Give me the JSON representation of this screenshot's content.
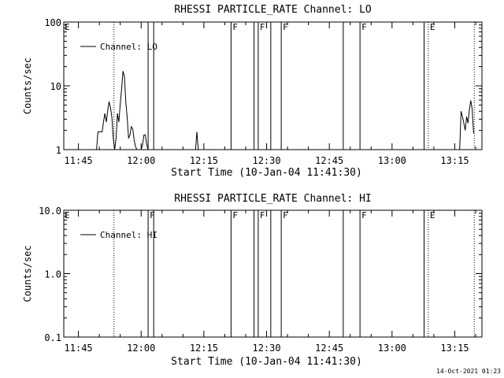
{
  "chart_data": [
    {
      "type": "line",
      "title": "RHESSI PARTICLE_RATE Channel: LO",
      "xlabel": "Start Time (10-Jan-04 11:41:30)",
      "ylabel": "Counts/sec",
      "yscale": "log",
      "ylim": [
        1,
        100
      ],
      "xlim": [
        "11:41:30",
        "13:21:30"
      ],
      "ytick_labels": [
        "1",
        "10",
        "100"
      ],
      "ytick_values": [
        1,
        10,
        100
      ],
      "xtick_labels": [
        "11:45",
        "12:00",
        "12:15",
        "12:30",
        "12:45",
        "13:00",
        "13:15"
      ],
      "legend": {
        "position": "top-left"
      },
      "series": [
        {
          "name": "Channel: LO",
          "x": [
            "11:49:20",
            "11:49:40",
            "11:50:00",
            "11:50:20",
            "11:50:40",
            "11:51:00",
            "11:51:20",
            "11:51:40",
            "11:52:00",
            "11:52:20",
            "11:52:40",
            "11:53:00",
            "11:53:20",
            "11:53:40",
            "11:54:00",
            "11:54:20",
            "11:54:40",
            "11:55:00",
            "11:55:20",
            "11:55:40",
            "11:56:00",
            "11:56:20",
            "11:56:40",
            "11:57:00",
            "11:57:20",
            "11:57:40",
            "11:58:00",
            "11:58:20",
            "11:58:40",
            "11:59:00",
            "11:59:20",
            "11:59:40",
            "12:00:00",
            "12:00:20",
            "12:00:40",
            "12:01:00",
            "12:01:20",
            "12:01:40",
            "12:02:00"
          ],
          "y": [
            1,
            1.9,
            1.9,
            1.9,
            1.9,
            2.7,
            3.7,
            2.7,
            4.1,
            5.7,
            4.5,
            3.2,
            1.5,
            1,
            1.5,
            3.7,
            2.7,
            5.2,
            9.2,
            17,
            14,
            5.5,
            3.2,
            1.5,
            1.7,
            2.3,
            2.1,
            1.4,
            1.1,
            1,
            1,
            1,
            1,
            1.2,
            1.7,
            1.7,
            1.2,
            1,
            1
          ]
        },
        {
          "name": "Channel: LO",
          "x": [
            "12:13:00",
            "12:13:20",
            "12:13:40"
          ],
          "y": [
            1,
            1.9,
            1
          ]
        },
        {
          "name": "Channel: LO",
          "x": [
            "13:16:10",
            "13:16:30",
            "13:16:50",
            "13:17:10",
            "13:17:30",
            "13:17:50",
            "13:18:10",
            "13:18:30",
            "13:18:50",
            "13:19:10",
            "13:19:30"
          ],
          "y": [
            1,
            4,
            3.3,
            2.6,
            2,
            3.3,
            2.6,
            4.3,
            5.9,
            4.3,
            1.8
          ]
        }
      ],
      "event_lines": [
        {
          "time": "11:53:30",
          "style": "dotted",
          "label": ""
        },
        {
          "time": "12:01:40",
          "style": "solid",
          "label": ""
        },
        {
          "time": "12:03:00",
          "style": "solid",
          "label": ""
        },
        {
          "time": "12:21:30",
          "style": "solid",
          "label": "F"
        },
        {
          "time": "12:27:00",
          "style": "solid",
          "label": ""
        },
        {
          "time": "12:28:00",
          "style": "solid",
          "label": "F"
        },
        {
          "time": "12:31:00",
          "style": "solid",
          "label": ""
        },
        {
          "time": "12:33:30",
          "style": "solid",
          "label": "F"
        },
        {
          "time": "12:48:20",
          "style": "solid",
          "label": ""
        },
        {
          "time": "12:52:20",
          "style": "solid",
          "label": "F"
        },
        {
          "time": "13:07:40",
          "style": "solid",
          "label": ""
        },
        {
          "time": "13:08:40",
          "style": "dotted",
          "label": "E"
        },
        {
          "time": "13:19:40",
          "style": "dotted",
          "label": ""
        }
      ],
      "corner_label": "E"
    },
    {
      "type": "line",
      "title": "RHESSI PARTICLE_RATE Channel: HI",
      "xlabel": "Start Time (10-Jan-04 11:41:30)",
      "ylabel": "Counts/sec",
      "yscale": "log",
      "ylim": [
        0.1,
        10
      ],
      "xlim": [
        "11:41:30",
        "13:21:30"
      ],
      "ytick_labels": [
        "0.1",
        "1.0",
        "10.0"
      ],
      "ytick_values": [
        0.1,
        1,
        10
      ],
      "xtick_labels": [
        "11:45",
        "12:00",
        "12:15",
        "12:30",
        "12:45",
        "13:00",
        "13:15"
      ],
      "legend": {
        "position": "top-left"
      },
      "series": [
        {
          "name": "Channel: HI",
          "x": [],
          "y": []
        }
      ],
      "event_lines": [
        {
          "time": "11:53:30",
          "style": "dotted",
          "label": ""
        },
        {
          "time": "12:01:40",
          "style": "solid",
          "label": "F"
        },
        {
          "time": "12:03:00",
          "style": "solid",
          "label": ""
        },
        {
          "time": "12:21:30",
          "style": "solid",
          "label": "F"
        },
        {
          "time": "12:27:00",
          "style": "solid",
          "label": ""
        },
        {
          "time": "12:28:00",
          "style": "solid",
          "label": "F"
        },
        {
          "time": "12:31:00",
          "style": "solid",
          "label": ""
        },
        {
          "time": "12:33:30",
          "style": "solid",
          "label": "F"
        },
        {
          "time": "12:48:20",
          "style": "solid",
          "label": ""
        },
        {
          "time": "12:52:20",
          "style": "solid",
          "label": "F"
        },
        {
          "time": "13:07:40",
          "style": "solid",
          "label": ""
        },
        {
          "time": "13:08:40",
          "style": "dotted",
          "label": "E"
        },
        {
          "time": "13:19:40",
          "style": "dotted",
          "label": ""
        }
      ],
      "corner_label": "E"
    }
  ],
  "footer": {
    "timestamp": "14-Oct-2021 01:23"
  }
}
